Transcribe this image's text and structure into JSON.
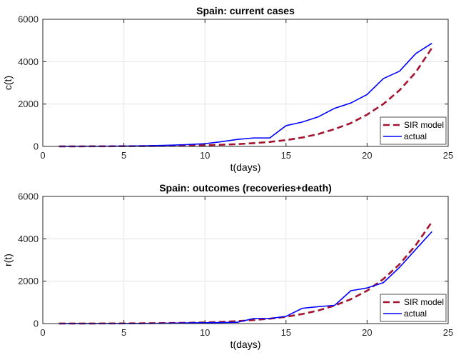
{
  "chart_data": [
    {
      "type": "line",
      "title": "Spain: current cases",
      "xlabel": "t(days)",
      "ylabel": "c(t)",
      "xlim": [
        0,
        25
      ],
      "ylim": [
        0,
        6000
      ],
      "xticks": [
        0,
        5,
        10,
        15,
        20,
        25
      ],
      "yticks": [
        0,
        2000,
        4000,
        6000
      ],
      "grid": true,
      "legend_position": "bottom-right",
      "series": [
        {
          "name": "SIR model",
          "color": "#a2142f",
          "style": "dashed",
          "x": [
            1,
            2,
            3,
            4,
            5,
            6,
            7,
            8,
            9,
            10,
            11,
            12,
            13,
            14,
            15,
            16,
            17,
            18,
            19,
            20,
            21,
            22,
            23,
            24
          ],
          "y": [
            2,
            3,
            5,
            7,
            10,
            14,
            20,
            28,
            40,
            56,
            78,
            109,
            153,
            214,
            299,
            419,
            586,
            820,
            1100,
            1500,
            2000,
            2650,
            3500,
            4650
          ]
        },
        {
          "name": "actual",
          "color": "#0000ff",
          "style": "solid",
          "x": [
            1,
            2,
            3,
            4,
            5,
            6,
            7,
            8,
            9,
            10,
            11,
            12,
            13,
            14,
            15,
            16,
            17,
            18,
            19,
            20,
            21,
            22,
            23,
            24
          ],
          "y": [
            2,
            2,
            5,
            10,
            15,
            25,
            40,
            60,
            90,
            130,
            220,
            330,
            400,
            400,
            980,
            1150,
            1400,
            1800,
            2050,
            2450,
            3200,
            3550,
            4380,
            4870
          ]
        }
      ]
    },
    {
      "type": "line",
      "title": "Spain: outcomes (recoveries+death)",
      "xlabel": "t(days)",
      "ylabel": "r(t)",
      "xlim": [
        0,
        25
      ],
      "ylim": [
        0,
        6000
      ],
      "xticks": [
        0,
        5,
        10,
        15,
        20,
        25
      ],
      "yticks": [
        0,
        2000,
        4000,
        6000
      ],
      "grid": true,
      "legend_position": "bottom-right",
      "series": [
        {
          "name": "SIR model",
          "color": "#a2142f",
          "style": "dashed",
          "x": [
            1,
            2,
            3,
            4,
            5,
            6,
            7,
            8,
            9,
            10,
            11,
            12,
            13,
            14,
            15,
            16,
            17,
            18,
            19,
            20,
            21,
            22,
            23,
            24
          ],
          "y": [
            1,
            2,
            3,
            5,
            8,
            12,
            18,
            26,
            38,
            55,
            80,
            115,
            165,
            230,
            320,
            450,
            620,
            850,
            1150,
            1550,
            2100,
            2800,
            3700,
            4800
          ]
        },
        {
          "name": "actual",
          "color": "#0000ff",
          "style": "solid",
          "x": [
            1,
            2,
            3,
            4,
            5,
            6,
            7,
            8,
            9,
            10,
            11,
            12,
            13,
            14,
            15,
            16,
            17,
            18,
            19,
            20,
            21,
            22,
            23,
            24
          ],
          "y": [
            1,
            1,
            2,
            2,
            3,
            5,
            10,
            20,
            30,
            40,
            50,
            60,
            240,
            240,
            340,
            720,
            800,
            860,
            1550,
            1680,
            1930,
            2650,
            3500,
            4340
          ]
        }
      ]
    }
  ]
}
